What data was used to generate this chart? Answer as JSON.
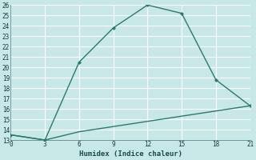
{
  "xlabel": "Humidex (Indice chaleur)",
  "line1_x": [
    0,
    3,
    6,
    9,
    12,
    15,
    18,
    21
  ],
  "line1_y": [
    13.5,
    13.0,
    20.5,
    23.8,
    26.0,
    25.2,
    18.8,
    16.3
  ],
  "line2_x": [
    0,
    3,
    6,
    9,
    12,
    15,
    18,
    21
  ],
  "line2_y": [
    13.5,
    13.0,
    13.8,
    14.3,
    14.8,
    15.3,
    15.8,
    16.3
  ],
  "line_color": "#2a7a6a",
  "bg_color": "#c8e8e8",
  "grid_color": "#b0d8d8",
  "xlim": [
    0,
    21
  ],
  "ylim": [
    13,
    26
  ],
  "xticks": [
    0,
    3,
    6,
    9,
    12,
    15,
    18,
    21
  ],
  "yticks": [
    13,
    14,
    15,
    16,
    17,
    18,
    19,
    20,
    21,
    22,
    23,
    24,
    25,
    26
  ]
}
